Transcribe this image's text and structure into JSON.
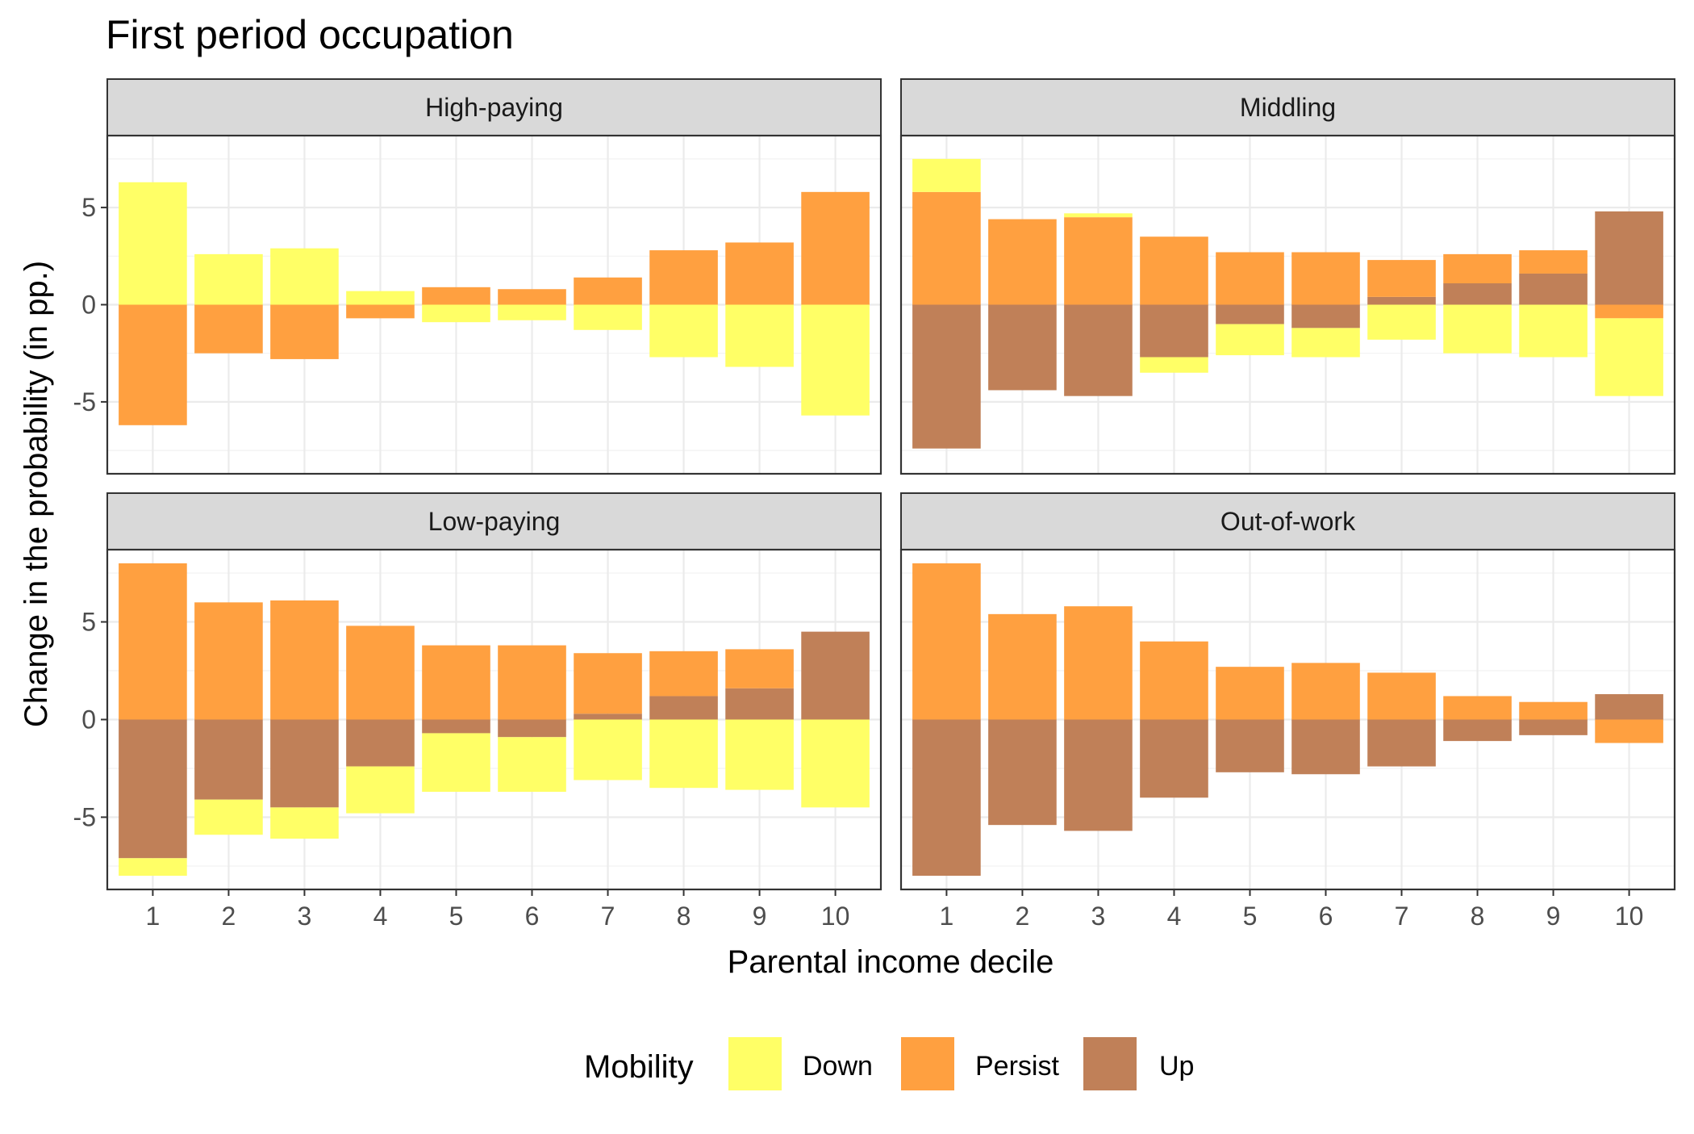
{
  "title": "First period occupation",
  "xlabel": "Parental income decile",
  "ylabel": "Change in the probability (in pp.)",
  "legend": {
    "title": "Mobility",
    "items": [
      {
        "label": "Down",
        "color": "#FFFF66"
      },
      {
        "label": "Persist",
        "color": "#FFA040"
      },
      {
        "label": "Up",
        "color": "#C08058"
      }
    ]
  },
  "colors": {
    "Down": "#FFFF66",
    "Persist": "#FFA040",
    "Up": "#C08058",
    "strip": "#D9D9D9",
    "grid": "#EBEBEB"
  },
  "chart_data": {
    "type": "bar",
    "stacking": "stacked positive/negative, faceted 2x2",
    "x": [
      1,
      2,
      3,
      4,
      5,
      6,
      7,
      8,
      9,
      10
    ],
    "x_ticks": [
      "1",
      "2",
      "3",
      "4",
      "5",
      "6",
      "7",
      "8",
      "9",
      "10"
    ],
    "ylim": [
      -8.7,
      8.7
    ],
    "y_ticks": [
      -5,
      0,
      5
    ],
    "grid": true,
    "legend_position": "bottom",
    "panels": [
      {
        "name": "High-paying",
        "series": [
          {
            "name": "Down",
            "values": [
              6.3,
              2.6,
              2.9,
              0.7,
              -0.9,
              -0.8,
              -1.3,
              -2.7,
              -3.2,
              -5.7
            ]
          },
          {
            "name": "Persist",
            "values": [
              -6.2,
              -2.5,
              -2.8,
              -0.7,
              0.9,
              0.8,
              1.4,
              2.8,
              3.2,
              5.8
            ]
          },
          {
            "name": "Up",
            "values": [
              0,
              0,
              0,
              0,
              0,
              0,
              0,
              0,
              0,
              0
            ]
          }
        ]
      },
      {
        "name": "Middling",
        "series": [
          {
            "name": "Down",
            "values": [
              1.7,
              0,
              0.2,
              -0.8,
              -1.6,
              -1.5,
              -1.8,
              -2.5,
              -2.7,
              -4.0
            ]
          },
          {
            "name": "Persist",
            "values": [
              5.8,
              4.4,
              4.5,
              3.5,
              2.7,
              2.7,
              1.9,
              1.5,
              1.2,
              -0.7
            ]
          },
          {
            "name": "Up",
            "values": [
              -7.4,
              -4.4,
              -4.7,
              -2.7,
              -1.0,
              -1.2,
              0.4,
              1.1,
              1.6,
              4.8
            ]
          }
        ]
      },
      {
        "name": "Low-paying",
        "series": [
          {
            "name": "Down",
            "values": [
              -0.9,
              -1.8,
              -1.6,
              -2.4,
              -3.0,
              -2.8,
              -3.1,
              -3.5,
              -3.6,
              -4.5
            ]
          },
          {
            "name": "Persist",
            "values": [
              8.0,
              6.0,
              6.1,
              4.8,
              3.8,
              3.8,
              3.1,
              2.3,
              2.0,
              0
            ]
          },
          {
            "name": "Up",
            "values": [
              -7.1,
              -4.1,
              -4.5,
              -2.4,
              -0.7,
              -0.9,
              0.3,
              1.2,
              1.6,
              4.5
            ]
          }
        ]
      },
      {
        "name": "Out-of-work",
        "series": [
          {
            "name": "Down",
            "values": [
              0,
              0,
              0,
              0,
              0,
              0,
              0,
              0,
              0,
              0
            ]
          },
          {
            "name": "Persist",
            "values": [
              8.0,
              5.4,
              5.8,
              4.0,
              2.7,
              2.9,
              2.4,
              1.2,
              0.9,
              -1.2
            ]
          },
          {
            "name": "Up",
            "values": [
              -8.0,
              -5.4,
              -5.7,
              -4.0,
              -2.7,
              -2.8,
              -2.4,
              -1.1,
              -0.8,
              1.3
            ]
          }
        ]
      }
    ]
  }
}
